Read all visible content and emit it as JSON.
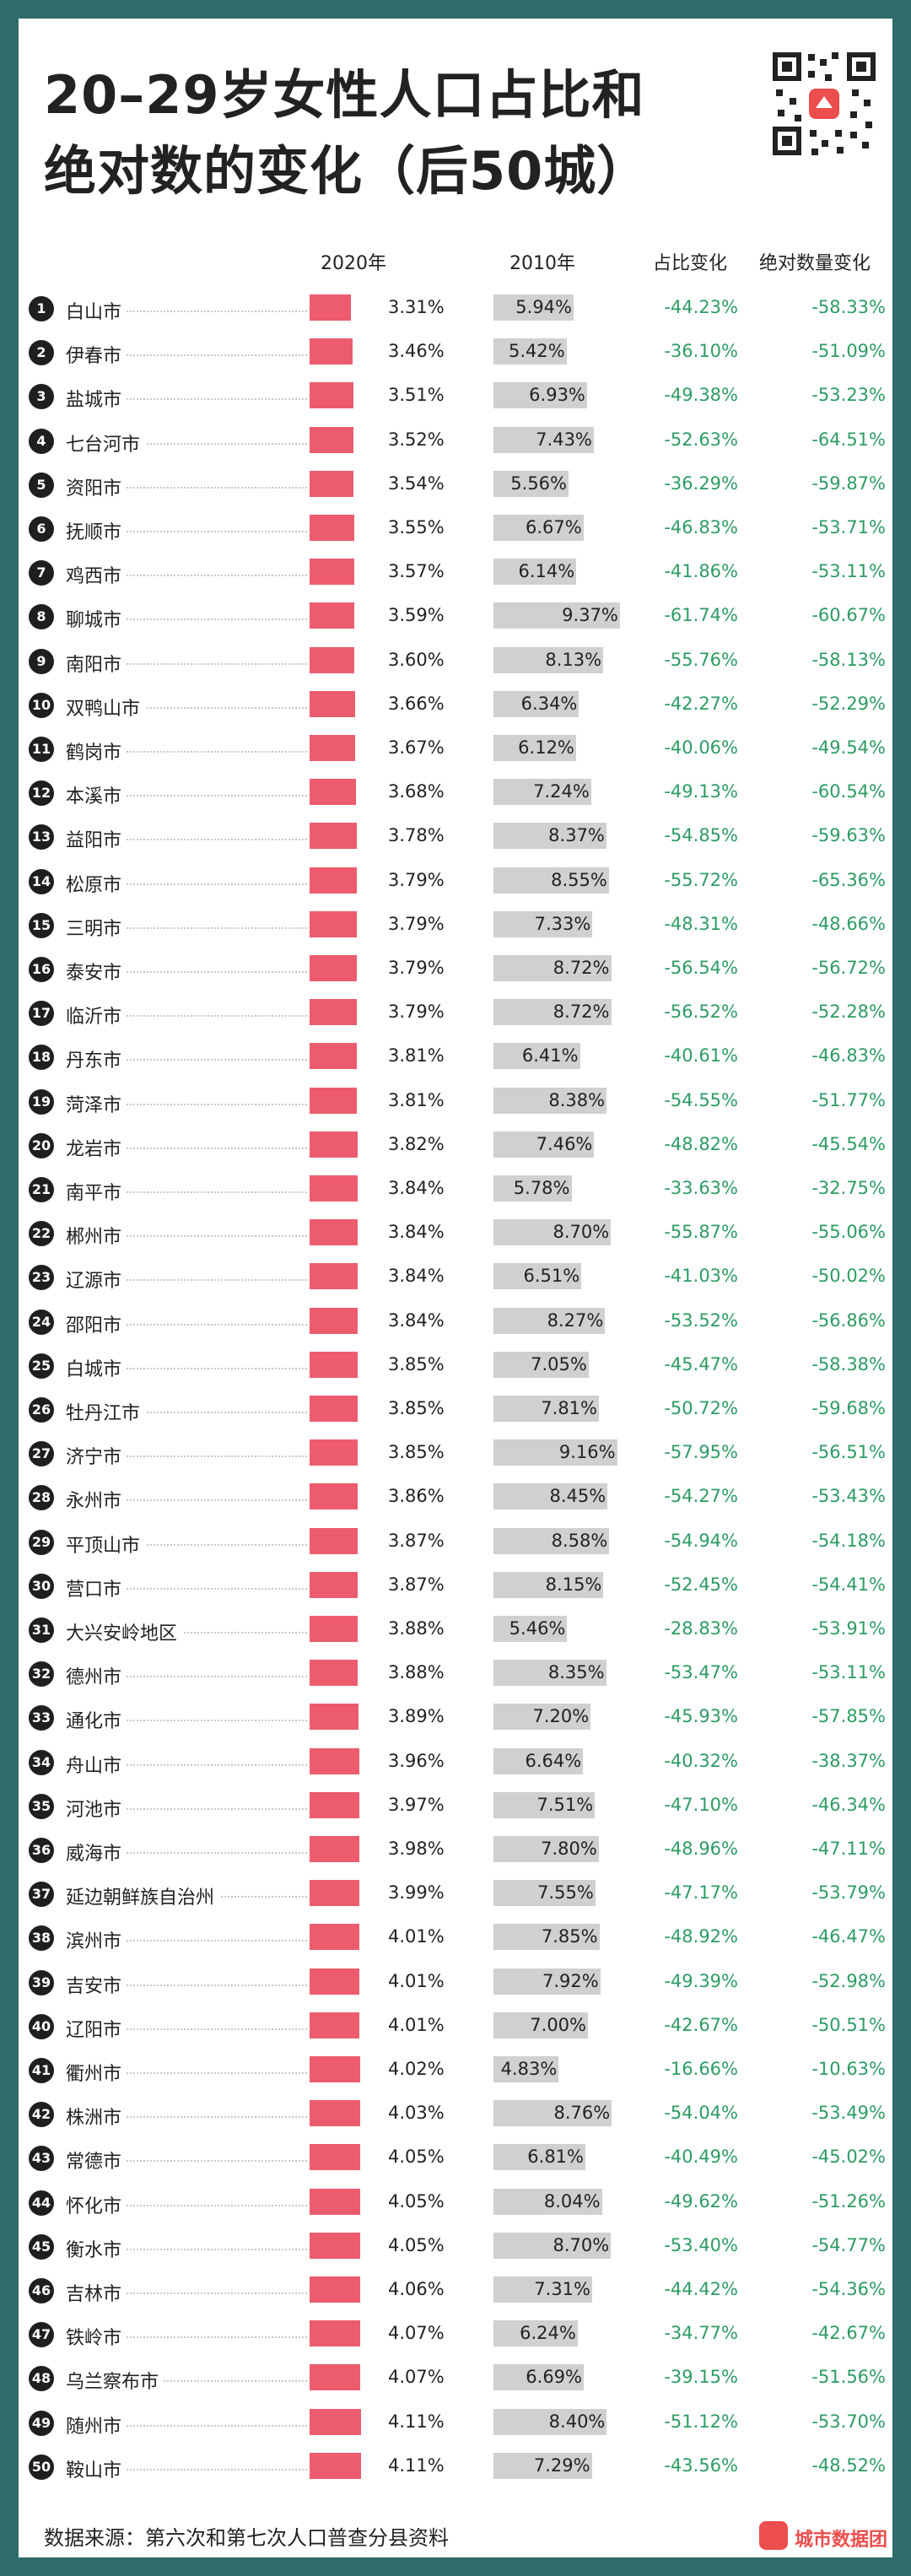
{
  "title": {
    "line1": "20–29岁女性人口占比和",
    "line2": "绝对数的变化（后50城）"
  },
  "columns": {
    "c2020": "2020年",
    "c2010": "2010年",
    "share": "占比变化",
    "abs": "绝对数量变化"
  },
  "footer": {
    "source": "数据来源：第六次和第七次人口普查分县资料",
    "brand": "城市数据团"
  },
  "colors": {
    "bar2020": "#ec5c6e",
    "bar2010": "#d0d0d0",
    "positive_change": "#2d9c63",
    "background": "#2f6b68"
  },
  "chart_data": {
    "type": "table",
    "title": "20–29岁女性人口占比和绝对数的变化（后50城）",
    "columns": [
      "2020年",
      "2010年",
      "占比变化",
      "绝对数量变化"
    ],
    "rows": [
      {
        "rank": "1",
        "city": "白山市",
        "v2020": "3.31%",
        "v2010": "5.94%",
        "share": "-44.23%",
        "abs": "-58.33%"
      },
      {
        "rank": "2",
        "city": "伊春市",
        "v2020": "3.46%",
        "v2010": "5.42%",
        "share": "-36.10%",
        "abs": "-51.09%"
      },
      {
        "rank": "3",
        "city": "盐城市",
        "v2020": "3.51%",
        "v2010": "6.93%",
        "share": "-49.38%",
        "abs": "-53.23%"
      },
      {
        "rank": "4",
        "city": "七台河市",
        "v2020": "3.52%",
        "v2010": "7.43%",
        "share": "-52.63%",
        "abs": "-64.51%"
      },
      {
        "rank": "5",
        "city": "资阳市",
        "v2020": "3.54%",
        "v2010": "5.56%",
        "share": "-36.29%",
        "abs": "-59.87%"
      },
      {
        "rank": "6",
        "city": "抚顺市",
        "v2020": "3.55%",
        "v2010": "6.67%",
        "share": "-46.83%",
        "abs": "-53.71%"
      },
      {
        "rank": "7",
        "city": "鸡西市",
        "v2020": "3.57%",
        "v2010": "6.14%",
        "share": "-41.86%",
        "abs": "-53.11%"
      },
      {
        "rank": "8",
        "city": "聊城市",
        "v2020": "3.59%",
        "v2010": "9.37%",
        "share": "-61.74%",
        "abs": "-60.67%"
      },
      {
        "rank": "9",
        "city": "南阳市",
        "v2020": "3.60%",
        "v2010": "8.13%",
        "share": "-55.76%",
        "abs": "-58.13%"
      },
      {
        "rank": "10",
        "city": "双鸭山市",
        "v2020": "3.66%",
        "v2010": "6.34%",
        "share": "-42.27%",
        "abs": "-52.29%"
      },
      {
        "rank": "11",
        "city": "鹤岗市",
        "v2020": "3.67%",
        "v2010": "6.12%",
        "share": "-40.06%",
        "abs": "-49.54%"
      },
      {
        "rank": "12",
        "city": "本溪市",
        "v2020": "3.68%",
        "v2010": "7.24%",
        "share": "-49.13%",
        "abs": "-60.54%"
      },
      {
        "rank": "13",
        "city": "益阳市",
        "v2020": "3.78%",
        "v2010": "8.37%",
        "share": "-54.85%",
        "abs": "-59.63%"
      },
      {
        "rank": "14",
        "city": "松原市",
        "v2020": "3.79%",
        "v2010": "8.55%",
        "share": "-55.72%",
        "abs": "-65.36%"
      },
      {
        "rank": "15",
        "city": "三明市",
        "v2020": "3.79%",
        "v2010": "7.33%",
        "share": "-48.31%",
        "abs": "-48.66%"
      },
      {
        "rank": "16",
        "city": "泰安市",
        "v2020": "3.79%",
        "v2010": "8.72%",
        "share": "-56.54%",
        "abs": "-56.72%"
      },
      {
        "rank": "17",
        "city": "临沂市",
        "v2020": "3.79%",
        "v2010": "8.72%",
        "share": "-56.52%",
        "abs": "-52.28%"
      },
      {
        "rank": "18",
        "city": "丹东市",
        "v2020": "3.81%",
        "v2010": "6.41%",
        "share": "-40.61%",
        "abs": "-46.83%"
      },
      {
        "rank": "19",
        "city": "菏泽市",
        "v2020": "3.81%",
        "v2010": "8.38%",
        "share": "-54.55%",
        "abs": "-51.77%"
      },
      {
        "rank": "20",
        "city": "龙岩市",
        "v2020": "3.82%",
        "v2010": "7.46%",
        "share": "-48.82%",
        "abs": "-45.54%"
      },
      {
        "rank": "21",
        "city": "南平市",
        "v2020": "3.84%",
        "v2010": "5.78%",
        "share": "-33.63%",
        "abs": "-32.75%"
      },
      {
        "rank": "22",
        "city": "郴州市",
        "v2020": "3.84%",
        "v2010": "8.70%",
        "share": "-55.87%",
        "abs": "-55.06%"
      },
      {
        "rank": "23",
        "city": "辽源市",
        "v2020": "3.84%",
        "v2010": "6.51%",
        "share": "-41.03%",
        "abs": "-50.02%"
      },
      {
        "rank": "24",
        "city": "邵阳市",
        "v2020": "3.84%",
        "v2010": "8.27%",
        "share": "-53.52%",
        "abs": "-56.86%"
      },
      {
        "rank": "25",
        "city": "白城市",
        "v2020": "3.85%",
        "v2010": "7.05%",
        "share": "-45.47%",
        "abs": "-58.38%"
      },
      {
        "rank": "26",
        "city": "牡丹江市",
        "v2020": "3.85%",
        "v2010": "7.81%",
        "share": "-50.72%",
        "abs": "-59.68%"
      },
      {
        "rank": "27",
        "city": "济宁市",
        "v2020": "3.85%",
        "v2010": "9.16%",
        "share": "-57.95%",
        "abs": "-56.51%"
      },
      {
        "rank": "28",
        "city": "永州市",
        "v2020": "3.86%",
        "v2010": "8.45%",
        "share": "-54.27%",
        "abs": "-53.43%"
      },
      {
        "rank": "29",
        "city": "平顶山市",
        "v2020": "3.87%",
        "v2010": "8.58%",
        "share": "-54.94%",
        "abs": "-54.18%"
      },
      {
        "rank": "30",
        "city": "营口市",
        "v2020": "3.87%",
        "v2010": "8.15%",
        "share": "-52.45%",
        "abs": "-54.41%"
      },
      {
        "rank": "31",
        "city": "大兴安岭地区",
        "v2020": "3.88%",
        "v2010": "5.46%",
        "share": "-28.83%",
        "abs": "-53.91%"
      },
      {
        "rank": "32",
        "city": "德州市",
        "v2020": "3.88%",
        "v2010": "8.35%",
        "share": "-53.47%",
        "abs": "-53.11%"
      },
      {
        "rank": "33",
        "city": "通化市",
        "v2020": "3.89%",
        "v2010": "7.20%",
        "share": "-45.93%",
        "abs": "-57.85%"
      },
      {
        "rank": "34",
        "city": "舟山市",
        "v2020": "3.96%",
        "v2010": "6.64%",
        "share": "-40.32%",
        "abs": "-38.37%"
      },
      {
        "rank": "35",
        "city": "河池市",
        "v2020": "3.97%",
        "v2010": "7.51%",
        "share": "-47.10%",
        "abs": "-46.34%"
      },
      {
        "rank": "36",
        "city": "威海市",
        "v2020": "3.98%",
        "v2010": "7.80%",
        "share": "-48.96%",
        "abs": "-47.11%"
      },
      {
        "rank": "37",
        "city": "延边朝鲜族自治州",
        "v2020": "3.99%",
        "v2010": "7.55%",
        "share": "-47.17%",
        "abs": "-53.79%"
      },
      {
        "rank": "38",
        "city": "滨州市",
        "v2020": "4.01%",
        "v2010": "7.85%",
        "share": "-48.92%",
        "abs": "-46.47%"
      },
      {
        "rank": "39",
        "city": "吉安市",
        "v2020": "4.01%",
        "v2010": "7.92%",
        "share": "-49.39%",
        "abs": "-52.98%"
      },
      {
        "rank": "40",
        "city": "辽阳市",
        "v2020": "4.01%",
        "v2010": "7.00%",
        "share": "-42.67%",
        "abs": "-50.51%"
      },
      {
        "rank": "41",
        "city": "衢州市",
        "v2020": "4.02%",
        "v2010": "4.83%",
        "share": "-16.66%",
        "abs": "-10.63%"
      },
      {
        "rank": "42",
        "city": "株洲市",
        "v2020": "4.03%",
        "v2010": "8.76%",
        "share": "-54.04%",
        "abs": "-53.49%"
      },
      {
        "rank": "43",
        "city": "常德市",
        "v2020": "4.05%",
        "v2010": "6.81%",
        "share": "-40.49%",
        "abs": "-45.02%"
      },
      {
        "rank": "44",
        "city": "怀化市",
        "v2020": "4.05%",
        "v2010": "8.04%",
        "share": "-49.62%",
        "abs": "-51.26%"
      },
      {
        "rank": "45",
        "city": "衡水市",
        "v2020": "4.05%",
        "v2010": "8.70%",
        "share": "-53.40%",
        "abs": "-54.77%"
      },
      {
        "rank": "46",
        "city": "吉林市",
        "v2020": "4.06%",
        "v2010": "7.31%",
        "share": "-44.42%",
        "abs": "-54.36%"
      },
      {
        "rank": "47",
        "city": "铁岭市",
        "v2020": "4.07%",
        "v2010": "6.24%",
        "share": "-34.77%",
        "abs": "-42.67%"
      },
      {
        "rank": "48",
        "city": "乌兰察布市",
        "v2020": "4.07%",
        "v2010": "6.69%",
        "share": "-39.15%",
        "abs": "-51.56%"
      },
      {
        "rank": "49",
        "city": "随州市",
        "v2020": "4.11%",
        "v2010": "8.40%",
        "share": "-51.12%",
        "abs": "-53.70%"
      },
      {
        "rank": "50",
        "city": "鞍山市",
        "v2020": "4.11%",
        "v2010": "7.29%",
        "share": "-43.56%",
        "abs": "-48.52%"
      }
    ]
  }
}
